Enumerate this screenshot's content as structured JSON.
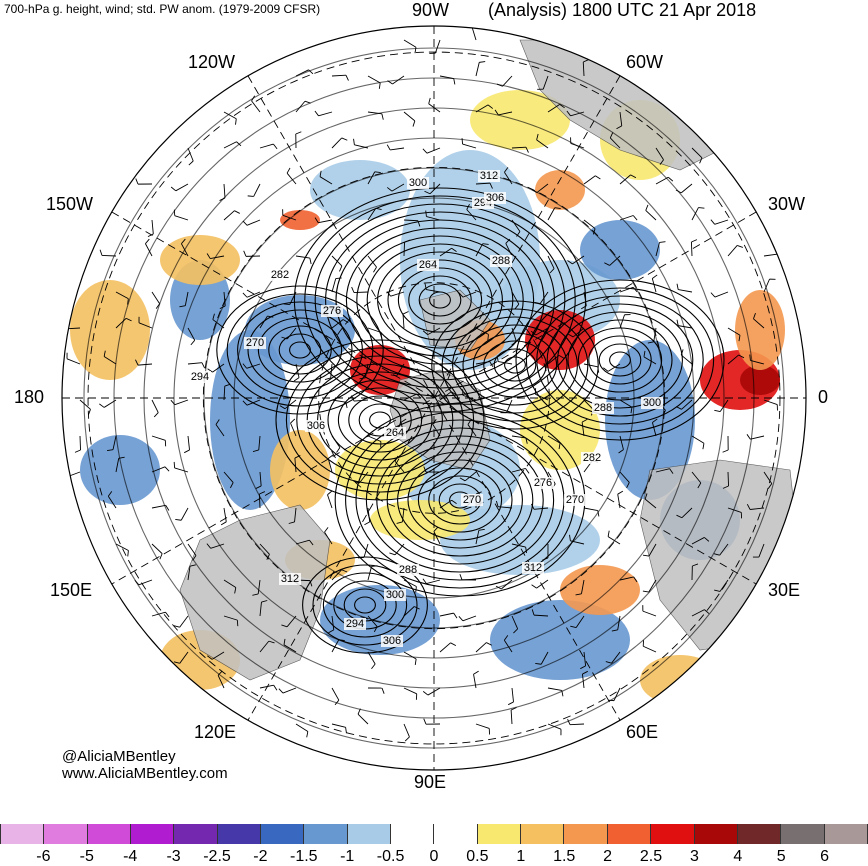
{
  "header": {
    "left_title": "700-hPa g. height, wind; std. PW anom. (1979-2009 CFSR)",
    "right_title": "(Analysis) 1800 UTC 21 Apr 2018"
  },
  "map": {
    "projection": "north-polar-stereographic",
    "longitude_labels": {
      "top": "90W",
      "upper_left_1": "120W",
      "upper_right_1": "60W",
      "upper_left_2": "150W",
      "upper_right_2": "30W",
      "left": "180",
      "right": "0",
      "lower_left_2": "150E",
      "lower_right_2": "30E",
      "lower_left_1": "120E",
      "lower_right_1": "60E",
      "bottom": "90E"
    },
    "contour_labels": [
      "300",
      "312",
      "294",
      "306",
      "288",
      "264",
      "276",
      "282",
      "270",
      "294",
      "306",
      "264",
      "270",
      "288",
      "300",
      "282",
      "276",
      "270",
      "288",
      "312",
      "300",
      "294",
      "306",
      "312"
    ],
    "colors": {
      "land": "#c0c0c0",
      "ocean_bg": "#ffffff",
      "contour": "#000000",
      "grid": "#000000"
    }
  },
  "credit": {
    "twitter": "@AliciaMBentley",
    "website": "www.AliciaMBentley.com"
  },
  "colorbar": {
    "swatches": [
      "#e8b4e8",
      "#e07ce0",
      "#d04cd8",
      "#b01cd0",
      "#7428b0",
      "#4638a8",
      "#3868c0",
      "#6898d0",
      "#a8cce8",
      "#ffffff",
      "#ffffff",
      "#f8e870",
      "#f4c060",
      "#f49850",
      "#f06030",
      "#e01010",
      "#a80808",
      "#702828",
      "#787070",
      "#a89898"
    ],
    "tick_labels": [
      "-6",
      "-5",
      "-4",
      "-3",
      "-2.5",
      "-2",
      "-1.5",
      "-1",
      "-0.5",
      "0",
      "0.5",
      "1",
      "1.5",
      "2",
      "2.5",
      "3",
      "4",
      "5",
      "6"
    ]
  }
}
